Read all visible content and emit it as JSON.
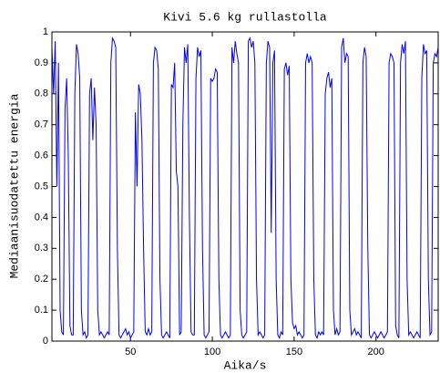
{
  "chart_data": {
    "type": "line",
    "title": "Kivi 5.6 kg rullastolla",
    "xlabel": "Aika/s",
    "ylabel": "Mediaanisuodatettu energia",
    "xlim": [
      2,
      238
    ],
    "ylim": [
      0,
      1
    ],
    "xticks": [
      50,
      100,
      150,
      200
    ],
    "yticks": [
      0,
      0.1,
      0.2,
      0.3,
      0.4,
      0.5,
      0.6,
      0.7,
      0.8,
      0.9,
      1
    ],
    "grid": false,
    "x": [
      2,
      3,
      4,
      5,
      6,
      7,
      8,
      9,
      10,
      11,
      12,
      13,
      14,
      15,
      16,
      17,
      18,
      19,
      20,
      21,
      22,
      23,
      24,
      25,
      26,
      27,
      28,
      29,
      30,
      31,
      32,
      33,
      34,
      35,
      36,
      37,
      38,
      39,
      40,
      41,
      42,
      43,
      44,
      45,
      46,
      47,
      48,
      49,
      50,
      51,
      52,
      53,
      54,
      55,
      56,
      57,
      58,
      59,
      60,
      61,
      62,
      63,
      64,
      65,
      66,
      67,
      68,
      69,
      70,
      71,
      72,
      73,
      74,
      75,
      76,
      77,
      78,
      79,
      80,
      81,
      82,
      83,
      84,
      85,
      86,
      87,
      88,
      89,
      90,
      91,
      92,
      93,
      94,
      95,
      96,
      97,
      98,
      99,
      100,
      101,
      102,
      103,
      104,
      105,
      106,
      107,
      108,
      109,
      110,
      111,
      112,
      113,
      114,
      115,
      116,
      117,
      118,
      119,
      120,
      121,
      122,
      123,
      124,
      125,
      126,
      127,
      128,
      129,
      130,
      131,
      132,
      133,
      134,
      135,
      136,
      137,
      138,
      139,
      140,
      141,
      142,
      143,
      144,
      145,
      146,
      147,
      148,
      149,
      150,
      151,
      152,
      153,
      154,
      155,
      156,
      157,
      158,
      159,
      160,
      161,
      162,
      163,
      164,
      165,
      166,
      167,
      168,
      169,
      170,
      171,
      172,
      173,
      174,
      175,
      176,
      177,
      178,
      179,
      180,
      181,
      182,
      183,
      184,
      185,
      186,
      187,
      188,
      189,
      190,
      191,
      192,
      193,
      194,
      195,
      196,
      197,
      198,
      199,
      200,
      201,
      202,
      203,
      204,
      205,
      206,
      207,
      208,
      209,
      210,
      211,
      212,
      213,
      214,
      215,
      216,
      217,
      218,
      219,
      220,
      221,
      222,
      223,
      224,
      225,
      226,
      227,
      228,
      229,
      230,
      231,
      232,
      233,
      234,
      235,
      236,
      237,
      238
    ],
    "series": [
      {
        "color": "#0000ff",
        "values": [
          0.95,
          0.8,
          0.97,
          0.5,
          0.9,
          0.1,
          0.03,
          0.02,
          0.75,
          0.85,
          0.6,
          0.05,
          0.02,
          0.02,
          0.8,
          0.96,
          0.93,
          0.85,
          0.1,
          0.02,
          0.03,
          0.01,
          0.02,
          0.8,
          0.85,
          0.65,
          0.82,
          0.7,
          0.1,
          0.02,
          0.03,
          0.02,
          0.01,
          0.02,
          0.03,
          0.02,
          0.9,
          0.98,
          0.97,
          0.95,
          0.3,
          0.02,
          0.01,
          0.02,
          0.03,
          0.04,
          0.02,
          0.03,
          0.01,
          0.02,
          0.03,
          0.74,
          0.5,
          0.83,
          0.8,
          0.65,
          0.3,
          0.03,
          0.02,
          0.04,
          0.02,
          0.03,
          0.9,
          0.95,
          0.94,
          0.88,
          0.2,
          0.02,
          0.01,
          0.02,
          0.03,
          0.02,
          0.01,
          0.83,
          0.82,
          0.9,
          0.55,
          0.5,
          0.02,
          0.03,
          0.7,
          0.95,
          0.9,
          0.96,
          0.4,
          0.03,
          0.02,
          0.02,
          0.85,
          0.95,
          0.92,
          0.94,
          0.3,
          0.02,
          0.01,
          0.02,
          0.03,
          0.85,
          0.84,
          0.85,
          0.88,
          0.87,
          0.2,
          0.02,
          0.01,
          0.02,
          0.03,
          0.02,
          0.01,
          0.02,
          0.95,
          0.9,
          0.97,
          0.93,
          0.9,
          0.1,
          0.02,
          0.01,
          0.02,
          0.03,
          0.97,
          0.98,
          0.95,
          0.97,
          0.9,
          0.2,
          0.02,
          0.03,
          0.02,
          0.01,
          0.02,
          0.9,
          0.97,
          0.95,
          0.35,
          0.9,
          0.94,
          0.2,
          0.02,
          0.01,
          0.03,
          0.02,
          0.88,
          0.9,
          0.86,
          0.89,
          0.2,
          0.06,
          0.04,
          0.05,
          0.02,
          0.03,
          0.02,
          0.01,
          0.02,
          0.9,
          0.93,
          0.9,
          0.92,
          0.9,
          0.2,
          0.02,
          0.01,
          0.03,
          0.02,
          0.03,
          0.02,
          0.8,
          0.85,
          0.87,
          0.82,
          0.85,
          0.1,
          0.02,
          0.04,
          0.02,
          0.03,
          0.95,
          0.98,
          0.9,
          0.93,
          0.92,
          0.1,
          0.02,
          0.03,
          0.04,
          0.02,
          0.03,
          0.02,
          0.01,
          0.9,
          0.95,
          0.92,
          0.3,
          0.02,
          0.01,
          0.02,
          0.03,
          0.02,
          0.01,
          0.02,
          0.03,
          0.02,
          0.01,
          0.02,
          0.03,
          0.9,
          0.93,
          0.92,
          0.9,
          0.05,
          0.02,
          0.01,
          0.9,
          0.96,
          0.93,
          0.97,
          0.2,
          0.02,
          0.03,
          0.02,
          0.01,
          0.02,
          0.03,
          0.02,
          0.01,
          0.85,
          0.96,
          0.93,
          0.94,
          0.2,
          0.02,
          0.03,
          0.9,
          0.93,
          0.92,
          0.95
        ]
      }
    ]
  }
}
